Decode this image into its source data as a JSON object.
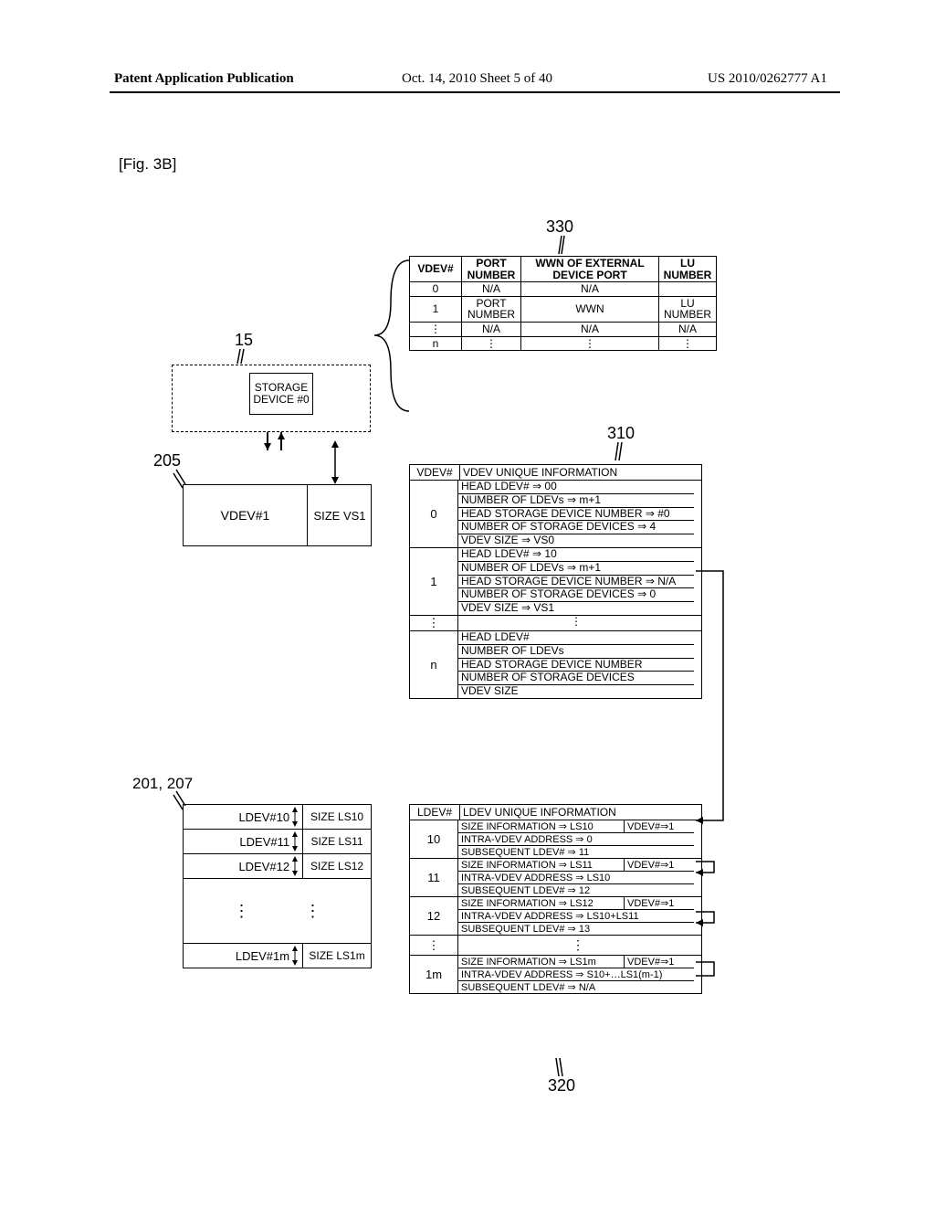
{
  "header": {
    "left": "Patent Application Publication",
    "mid": "Oct. 14, 2010  Sheet 5 of 40",
    "right": "US 2010/0262777 A1"
  },
  "fig_label": "[Fig. 3B]",
  "ref_nums": {
    "n330": "330",
    "n310": "310",
    "n320": "320",
    "n15": "15",
    "n205": "205",
    "n201_207": "201, 207"
  },
  "table330": {
    "headers": [
      "VDEV#",
      "PORT NUMBER",
      "WWN OF EXTERNAL DEVICE PORT",
      "LU NUMBER"
    ],
    "rows": [
      [
        "0",
        "N/A",
        "N/A",
        ""
      ],
      [
        "1",
        "PORT NUMBER",
        "WWN",
        "LU NUMBER"
      ],
      [
        "⋮",
        "N/A",
        "N/A",
        "N/A"
      ],
      [
        "n",
        "⋮",
        "⋮",
        "⋮"
      ]
    ]
  },
  "storage_device": "STORAGE DEVICE #0",
  "vdev_box": {
    "label": "VDEV#1",
    "size": "SIZE VS1"
  },
  "ldev_rows": [
    {
      "id": "LDEV#10",
      "size": "SIZE LS10"
    },
    {
      "id": "LDEV#11",
      "size": "SIZE LS11"
    },
    {
      "id": "LDEV#12",
      "size": "SIZE LS12"
    },
    {
      "id": "LDEV#1m",
      "size": "SIZE LS1m"
    }
  ],
  "table310": {
    "header": [
      "VDEV#",
      "VDEV UNIQUE INFORMATION"
    ],
    "rows": [
      {
        "key": "0",
        "lines": [
          "HEAD LDEV#   ⇒ 00",
          "NUMBER OF LDEVs ⇒ m+1",
          "HEAD STORAGE DEVICE NUMBER ⇒ #0",
          "NUMBER OF STORAGE DEVICES ⇒ 4",
          "VDEV SIZE ⇒ VS0"
        ]
      },
      {
        "key": "1",
        "lines": [
          "HEAD LDEV#   ⇒ 10",
          "NUMBER OF LDEVs ⇒ m+1",
          "HEAD STORAGE DEVICE NUMBER ⇒ N/A",
          "NUMBER OF STORAGE DEVICES ⇒ 0",
          "VDEV SIZE ⇒ VS1"
        ]
      },
      {
        "key": "⋮",
        "lines": [
          "⋮"
        ]
      },
      {
        "key": "n",
        "lines": [
          "HEAD LDEV#",
          "NUMBER OF LDEVs",
          "HEAD STORAGE DEVICE NUMBER",
          "NUMBER OF STORAGE DEVICES",
          "VDEV SIZE"
        ]
      }
    ]
  },
  "table320": {
    "header": [
      "LDEV#",
      "LDEV UNIQUE INFORMATION"
    ],
    "rows": [
      {
        "key": "10",
        "line1a": "SIZE INFORMATION ⇒ LS10",
        "line1b": "VDEV#⇒1",
        "line2": "INTRA-VDEV ADDRESS ⇒ 0",
        "line3": "SUBSEQUENT LDEV#  ⇒ 11"
      },
      {
        "key": "11",
        "line1a": "SIZE INFORMATION ⇒ LS11",
        "line1b": "VDEV#⇒1",
        "line2": "INTRA-VDEV ADDRESS ⇒ LS10",
        "line3": "SUBSEQUENT LDEV#  ⇒ 12"
      },
      {
        "key": "12",
        "line1a": "SIZE INFORMATION ⇒ LS12",
        "line1b": "VDEV#⇒1",
        "line2": "INTRA-VDEV ADDRESS ⇒ LS10+LS11",
        "line3": "SUBSEQUENT LDEV#  ⇒ 13"
      },
      {
        "key": "⋮",
        "dots": true
      },
      {
        "key": "1m",
        "line1a": "SIZE INFORMATION ⇒ LS1m",
        "line1b": "VDEV#⇒1",
        "line2": "INTRA-VDEV ADDRESS ⇒ S10+…LS1(m-1)",
        "line3": "SUBSEQUENT LDEV#  ⇒ N/A"
      }
    ]
  }
}
